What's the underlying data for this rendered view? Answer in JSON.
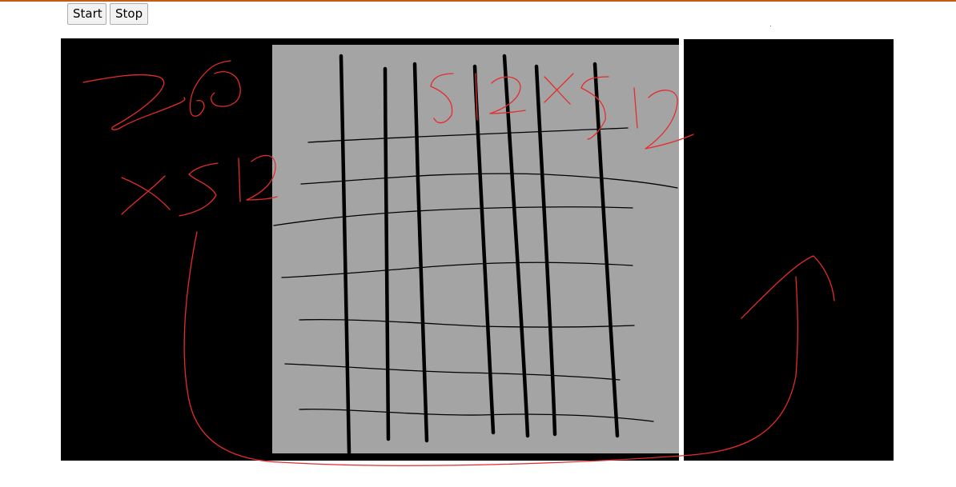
{
  "controls": {
    "start_label": "Start",
    "stop_label": "Stop"
  },
  "annotations": {
    "left_size_top": "256",
    "left_size_bottom": "x512",
    "center_size": "512x512"
  },
  "colors": {
    "accent_border": "#c55a11",
    "frame_background": "#000000",
    "image_gray": "#a4a4a4",
    "annotation_red": "#e52b2b"
  }
}
